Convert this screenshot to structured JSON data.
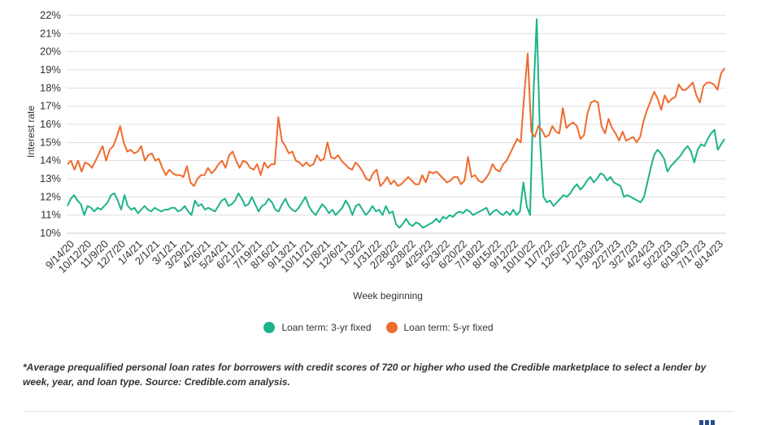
{
  "chart_data": {
    "type": "line",
    "xlabel": "Week beginning",
    "ylabel": "Interest rate",
    "ylim": [
      10,
      22
    ],
    "yticks": [
      "10%",
      "11%",
      "12%",
      "13%",
      "14%",
      "15%",
      "16%",
      "17%",
      "18%",
      "19%",
      "20%",
      "21%",
      "22%"
    ],
    "xticks": [
      "9/14/20",
      "10/12/20",
      "11/9/20",
      "12/7/20",
      "1/4/21",
      "2/1/21",
      "3/1/21",
      "3/29/21",
      "4/26/21",
      "5/24/21",
      "6/21/21",
      "7/19/21",
      "8/16/21",
      "9/13/21",
      "10/11/21",
      "11/8/21",
      "12/6/21",
      "1/3/22",
      "1/31/22",
      "2/28/22",
      "3/28/22",
      "4/25/22",
      "5/23/22",
      "6/20/22",
      "7/18/22",
      "8/15/22",
      "9/12/22",
      "10/10/22",
      "11/7/22",
      "12/5/22",
      "1/2/23",
      "1/30/23",
      "2/27/23",
      "3/27/23",
      "4/24/23",
      "5/22/23",
      "6/19/23",
      "7/17/23",
      "8/14/23"
    ],
    "legend_position": "bottom-center",
    "grid": true,
    "series": [
      {
        "name": "Loan term: 3-yr fixed",
        "color": "#1cb38a",
        "values": [
          11.5,
          11.9,
          12.1,
          11.8,
          11.6,
          11.0,
          11.5,
          11.4,
          11.2,
          11.4,
          11.3,
          11.5,
          11.7,
          12.1,
          12.2,
          11.8,
          11.3,
          12.1,
          11.5,
          11.3,
          11.4,
          11.1,
          11.3,
          11.5,
          11.3,
          11.2,
          11.4,
          11.3,
          11.2,
          11.3,
          11.3,
          11.4,
          11.4,
          11.2,
          11.3,
          11.5,
          11.2,
          11.0,
          11.8,
          11.5,
          11.6,
          11.3,
          11.4,
          11.3,
          11.2,
          11.5,
          11.8,
          11.9,
          11.5,
          11.6,
          11.8,
          12.2,
          11.9,
          11.5,
          11.6,
          12.0,
          11.6,
          11.2,
          11.5,
          11.6,
          11.9,
          11.7,
          11.3,
          11.2,
          11.6,
          11.9,
          11.5,
          11.3,
          11.2,
          11.4,
          11.7,
          12.0,
          11.5,
          11.2,
          11.0,
          11.3,
          11.6,
          11.4,
          11.1,
          11.3,
          11.0,
          11.2,
          11.4,
          11.8,
          11.5,
          11.0,
          11.5,
          11.6,
          11.3,
          11.0,
          11.2,
          11.5,
          11.2,
          11.3,
          11.0,
          11.5,
          11.1,
          11.2,
          10.5,
          10.3,
          10.5,
          10.8,
          10.5,
          10.4,
          10.6,
          10.5,
          10.3,
          10.4,
          10.5,
          10.6,
          10.8,
          10.6,
          10.9,
          10.8,
          11.0,
          10.9,
          11.1,
          11.2,
          11.1,
          11.3,
          11.2,
          11.0,
          11.1,
          11.2,
          11.3,
          11.4,
          11.0,
          11.2,
          11.3,
          11.1,
          11.0,
          11.2,
          11.0,
          11.3,
          11.0,
          11.2,
          12.8,
          11.5,
          11.0,
          17.5,
          21.8,
          15.0,
          12.0,
          11.7,
          11.8,
          11.5,
          11.7,
          11.9,
          12.1,
          12.0,
          12.2,
          12.5,
          12.7,
          12.4,
          12.6,
          12.9,
          13.1,
          12.8,
          13.0,
          13.3,
          13.2,
          12.9,
          13.1,
          12.8,
          12.7,
          12.6,
          12.0,
          12.1,
          12.0,
          11.9,
          11.8,
          11.7,
          12.0,
          12.8,
          13.6,
          14.3,
          14.6,
          14.4,
          14.1,
          13.4,
          13.7,
          13.9,
          14.1,
          14.3,
          14.6,
          14.8,
          14.5,
          13.9,
          14.6,
          14.9,
          14.8,
          15.2,
          15.5,
          15.7,
          14.6,
          14.9,
          15.2
        ]
      },
      {
        "name": "Loan term: 5-yr fixed",
        "color": "#ef6b2e",
        "values": [
          13.8,
          14.0,
          13.5,
          14.0,
          13.4,
          13.9,
          13.8,
          13.6,
          14.0,
          14.4,
          14.8,
          14.0,
          14.6,
          14.8,
          15.3,
          15.9,
          15.0,
          14.5,
          14.6,
          14.4,
          14.5,
          14.8,
          14.0,
          14.3,
          14.4,
          14.0,
          14.1,
          13.6,
          13.2,
          13.5,
          13.3,
          13.2,
          13.2,
          13.1,
          13.7,
          12.8,
          12.6,
          13.0,
          13.2,
          13.2,
          13.6,
          13.3,
          13.5,
          13.8,
          14.0,
          13.6,
          14.3,
          14.5,
          14.0,
          13.6,
          14.0,
          13.9,
          13.6,
          13.5,
          13.8,
          13.2,
          13.9,
          13.6,
          13.8,
          13.8,
          16.4,
          15.1,
          14.8,
          14.4,
          14.5,
          14.0,
          13.9,
          13.7,
          13.9,
          13.7,
          13.8,
          14.3,
          14.0,
          14.1,
          15.0,
          14.2,
          14.1,
          14.3,
          14.0,
          13.8,
          13.6,
          13.5,
          13.9,
          13.7,
          13.4,
          13.0,
          12.9,
          13.3,
          13.5,
          12.6,
          12.8,
          13.1,
          12.7,
          12.9,
          12.6,
          12.7,
          12.9,
          13.1,
          12.9,
          12.7,
          12.7,
          13.2,
          12.8,
          13.4,
          13.3,
          13.4,
          13.2,
          13.0,
          12.8,
          12.9,
          13.1,
          13.1,
          12.7,
          12.9,
          14.2,
          13.1,
          13.2,
          12.9,
          12.8,
          13.0,
          13.3,
          13.8,
          13.5,
          13.4,
          13.8,
          14.0,
          14.4,
          14.8,
          15.2,
          15.0,
          17.6,
          19.9,
          15.6,
          15.3,
          15.9,
          15.7,
          15.3,
          15.4,
          15.9,
          15.6,
          15.5,
          16.9,
          15.8,
          16.0,
          16.1,
          15.9,
          15.2,
          15.4,
          16.6,
          17.2,
          17.3,
          17.2,
          15.9,
          15.5,
          16.3,
          15.8,
          15.5,
          15.1,
          15.6,
          15.1,
          15.2,
          15.3,
          15.0,
          15.3,
          16.2,
          16.8,
          17.3,
          17.8,
          17.4,
          16.8,
          17.6,
          17.2,
          17.4,
          17.5,
          18.2,
          17.9,
          17.9,
          18.1,
          18.3,
          17.6,
          17.2,
          18.1,
          18.3,
          18.3,
          18.2,
          17.9,
          18.8,
          19.1
        ]
      }
    ]
  },
  "legend": {
    "items": [
      "Loan term: 3-yr fixed",
      "Loan term: 5-yr fixed"
    ]
  },
  "footnote": "*Average prequalified personal loan rates for borrowers with credit scores of 720 or higher who used the Credible marketplace to select a lender by week, year, and loan type. Source: Credible.com analysis.",
  "logo": {
    "name": "credible-logo",
    "colors": [
      "#2b4e8c",
      "#2b4e8c",
      "#2b4e8c"
    ]
  }
}
